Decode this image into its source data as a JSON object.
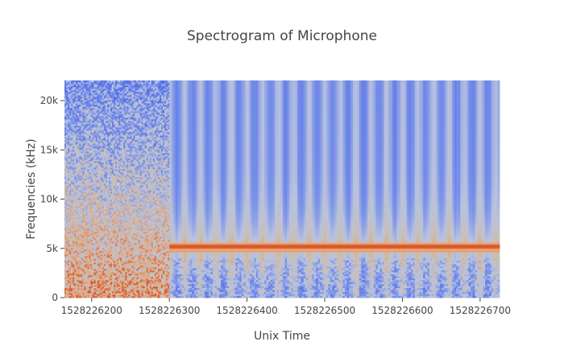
{
  "chart_data": {
    "type": "heatmap",
    "title": "Spectrogram of Microphone",
    "xlabel": "Unix Time",
    "ylabel": "Frequencies (kHz)",
    "xlim": [
      1528226165,
      1528226725
    ],
    "ylim": [
      0,
      22050
    ],
    "x_ticks": [
      {
        "value": 1528226200,
        "label": "1528226200"
      },
      {
        "value": 1528226300,
        "label": "1528226300"
      },
      {
        "value": 1528226400,
        "label": "1528226400"
      },
      {
        "value": 1528226500,
        "label": "1528226500"
      },
      {
        "value": 1528226600,
        "label": "1528226600"
      },
      {
        "value": 1528226700,
        "label": "1528226700"
      }
    ],
    "y_ticks": [
      {
        "value": 0,
        "label": "0"
      },
      {
        "value": 5000,
        "label": "5k"
      },
      {
        "value": 10000,
        "label": "10k"
      },
      {
        "value": 15000,
        "label": "15k"
      },
      {
        "value": 20000,
        "label": "20k"
      }
    ],
    "colorscale": [
      "#5470e8",
      "#7b92e8",
      "#b7c2e0",
      "#c8c0b8",
      "#e8a070",
      "#d85020"
    ],
    "noise_segment": {
      "x_start": 1528226165,
      "x_end": 1528226300
    },
    "tone_frequency": 5170,
    "grid": false,
    "legend": "none"
  }
}
